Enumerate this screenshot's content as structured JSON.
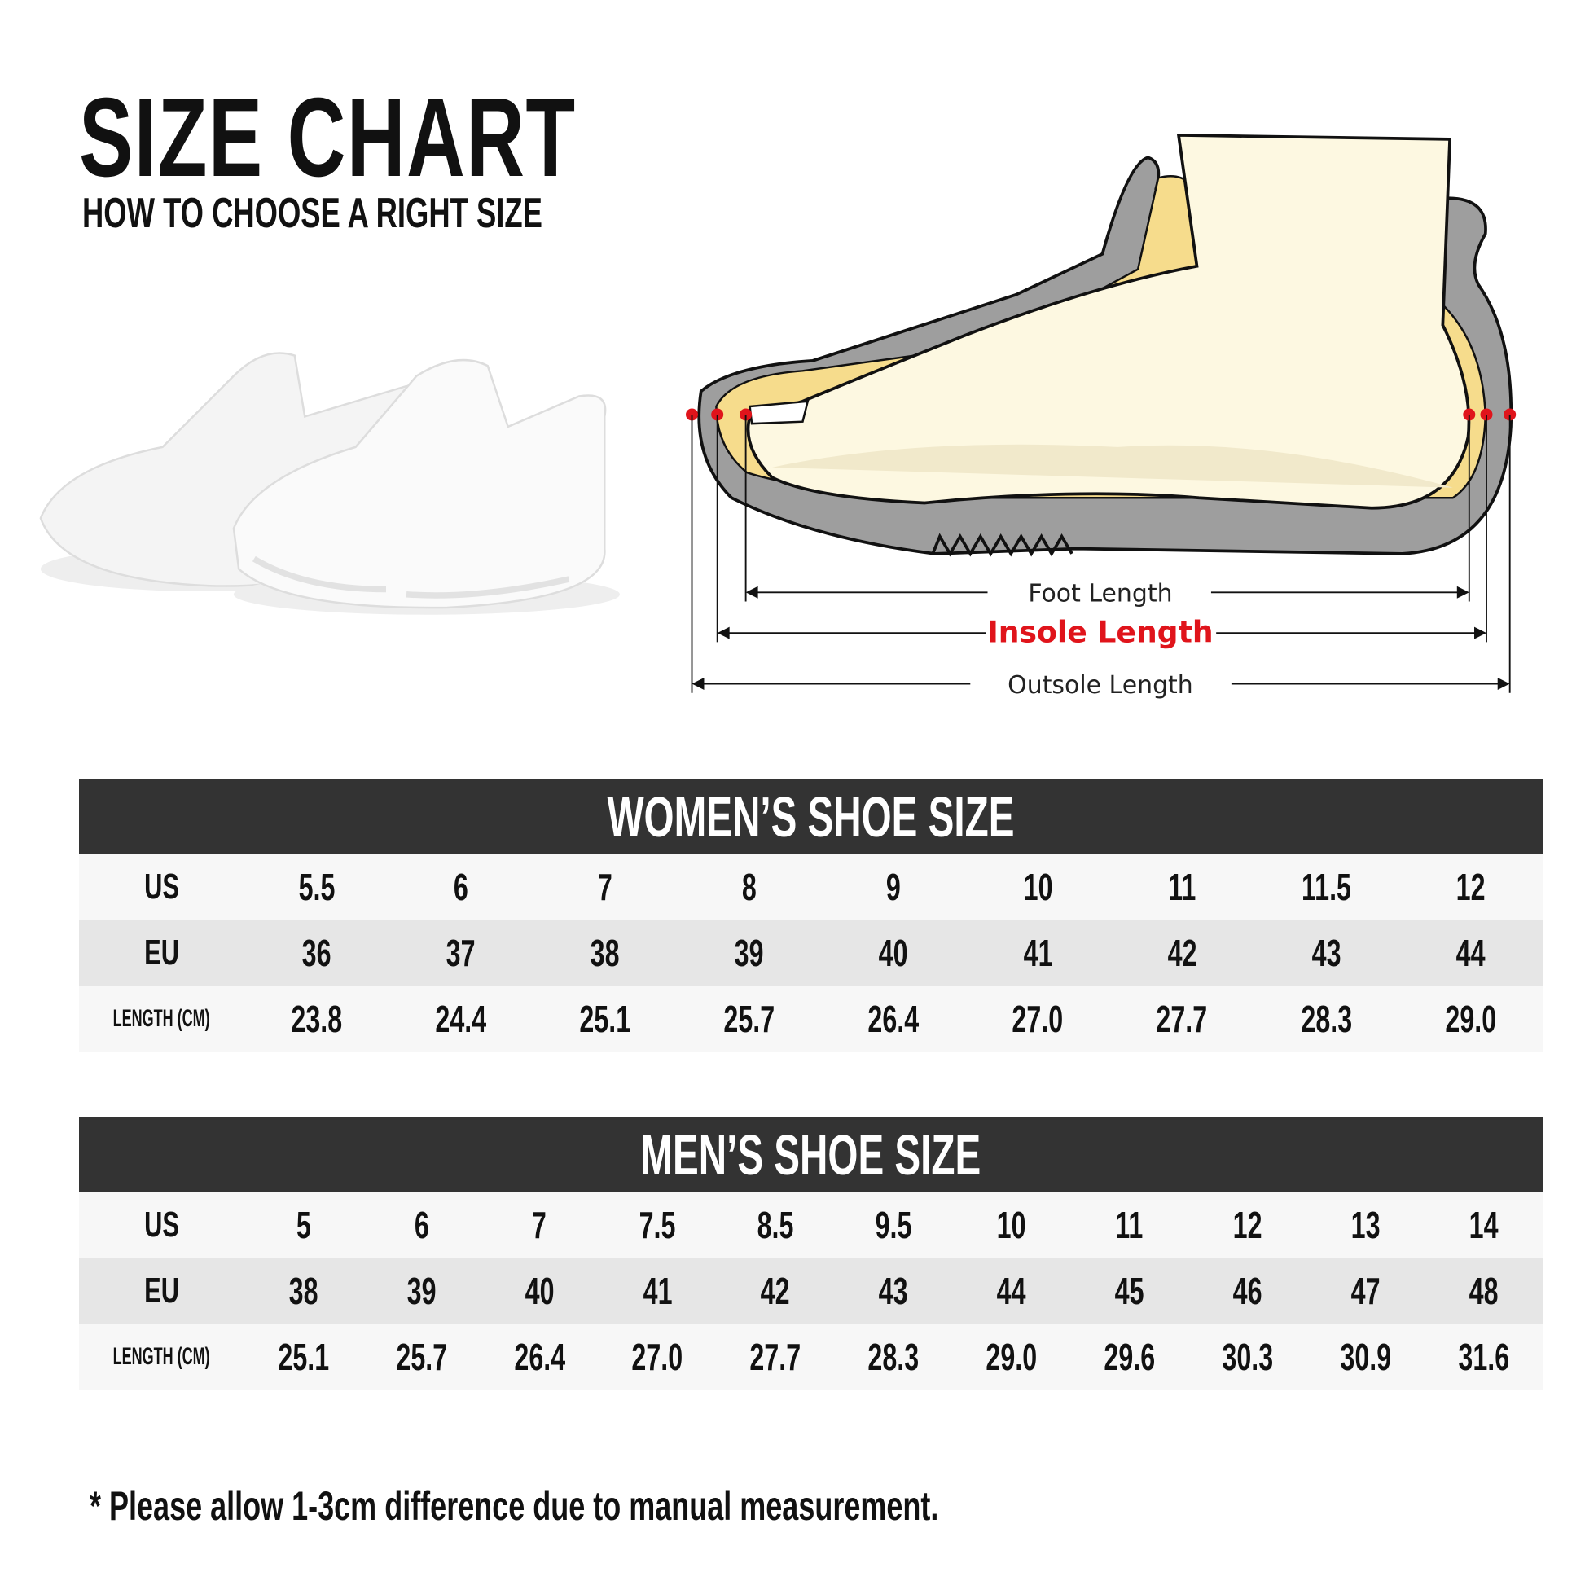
{
  "header": {
    "title": "SIZE CHART",
    "subtitle": "HOW TO CHOOSE A RIGHT SIZE"
  },
  "diagram": {
    "foot_length": "Foot Length",
    "insole_length": "Insole Length",
    "outsole_length": "Outsole Length",
    "colors": {
      "accent": "#e0141b",
      "sole": "#9e9e9e",
      "insole": "#f6dc8c",
      "foot": "#fdf8e1"
    }
  },
  "row_labels": {
    "us": "US",
    "eu": "EU",
    "length": "LENGTH (CM)"
  },
  "women": {
    "title": "WOMEN’S SHOE SIZE",
    "us": [
      "5.5",
      "6",
      "7",
      "8",
      "9",
      "10",
      "11",
      "11.5",
      "12"
    ],
    "eu": [
      "36",
      "37",
      "38",
      "39",
      "40",
      "41",
      "42",
      "43",
      "44"
    ],
    "length": [
      "23.8",
      "24.4",
      "25.1",
      "25.7",
      "26.4",
      "27.0",
      "27.7",
      "28.3",
      "29.0"
    ]
  },
  "men": {
    "title": "MEN’S SHOE SIZE",
    "us": [
      "5",
      "6",
      "7",
      "7.5",
      "8.5",
      "9.5",
      "10",
      "11",
      "12",
      "13",
      "14"
    ],
    "eu": [
      "38",
      "39",
      "40",
      "41",
      "42",
      "43",
      "44",
      "45",
      "46",
      "47",
      "48"
    ],
    "length": [
      "25.1",
      "25.7",
      "26.4",
      "27.0",
      "27.7",
      "28.3",
      "29.0",
      "29.6",
      "30.3",
      "30.9",
      "31.6"
    ]
  },
  "footnote": "* Please allow 1-3cm difference due to manual measurement."
}
